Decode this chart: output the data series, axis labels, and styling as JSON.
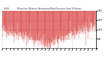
{
  "title": "Milwaukee Weather Normalized Wind Direction (Last 24 Hours)",
  "subtitle": "KMIW          ",
  "bg_color": "#ffffff",
  "line_color": "#cc0000",
  "grid_color": "#888888",
  "ylim": [
    0,
    360
  ],
  "ytick_labels": [
    "",
    "90",
    "180",
    "270",
    "360"
  ],
  "ytick_values": [
    0,
    90,
    180,
    270,
    360
  ],
  "num_points": 288,
  "seed": 42
}
